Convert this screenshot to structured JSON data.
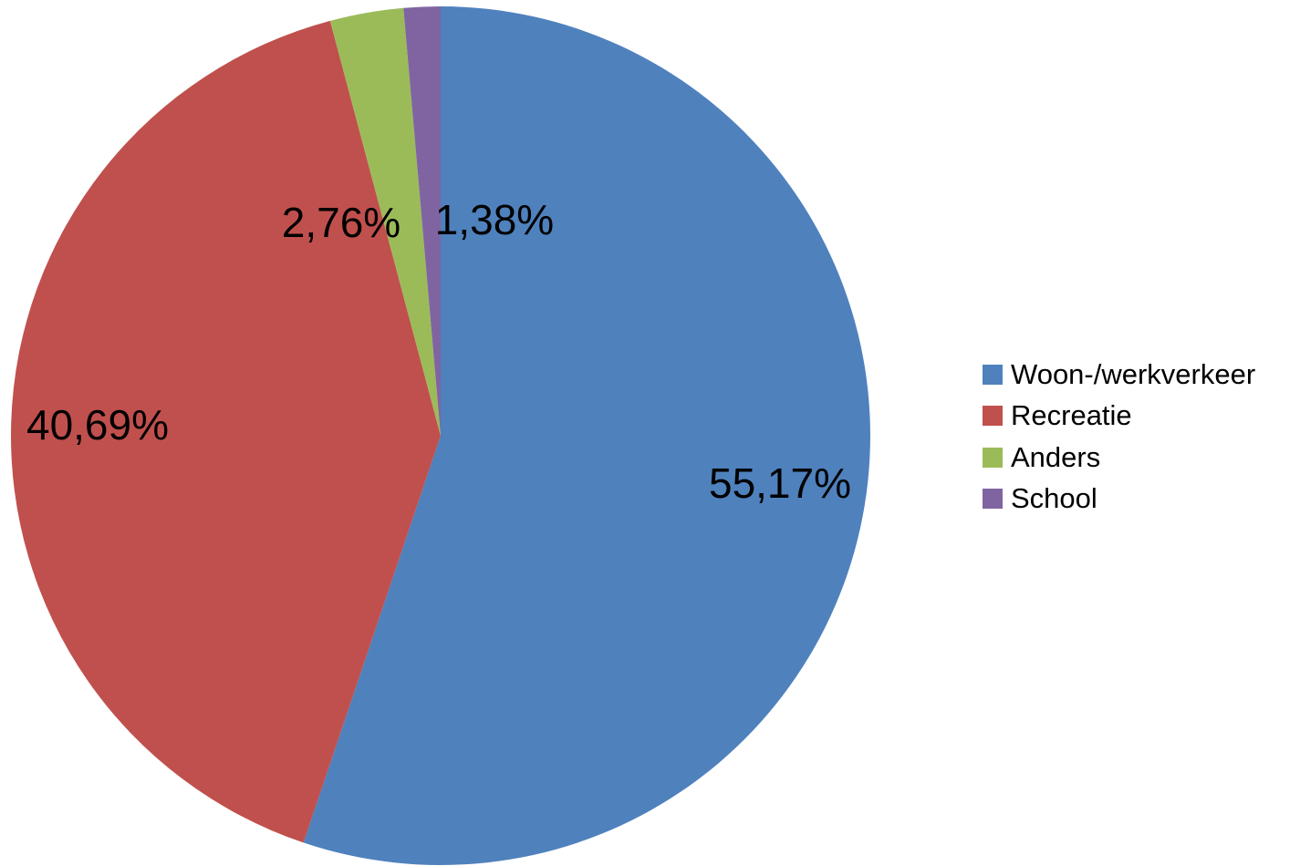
{
  "chart_data": {
    "type": "pie",
    "categories": [
      "Woon-/werkverkeer",
      "Recreatie",
      "Anders",
      "School"
    ],
    "values": [
      55.17,
      40.69,
      2.76,
      1.38
    ],
    "value_labels": [
      "55,17%",
      "40,69%",
      "2,76%",
      "1,38%"
    ],
    "colors": [
      "#4F81BD",
      "#C0504D",
      "#9BBB59",
      "#8064A2"
    ],
    "title": "",
    "start_angle": "12 o'clock",
    "direction": "clockwise",
    "legend_position": "right"
  }
}
